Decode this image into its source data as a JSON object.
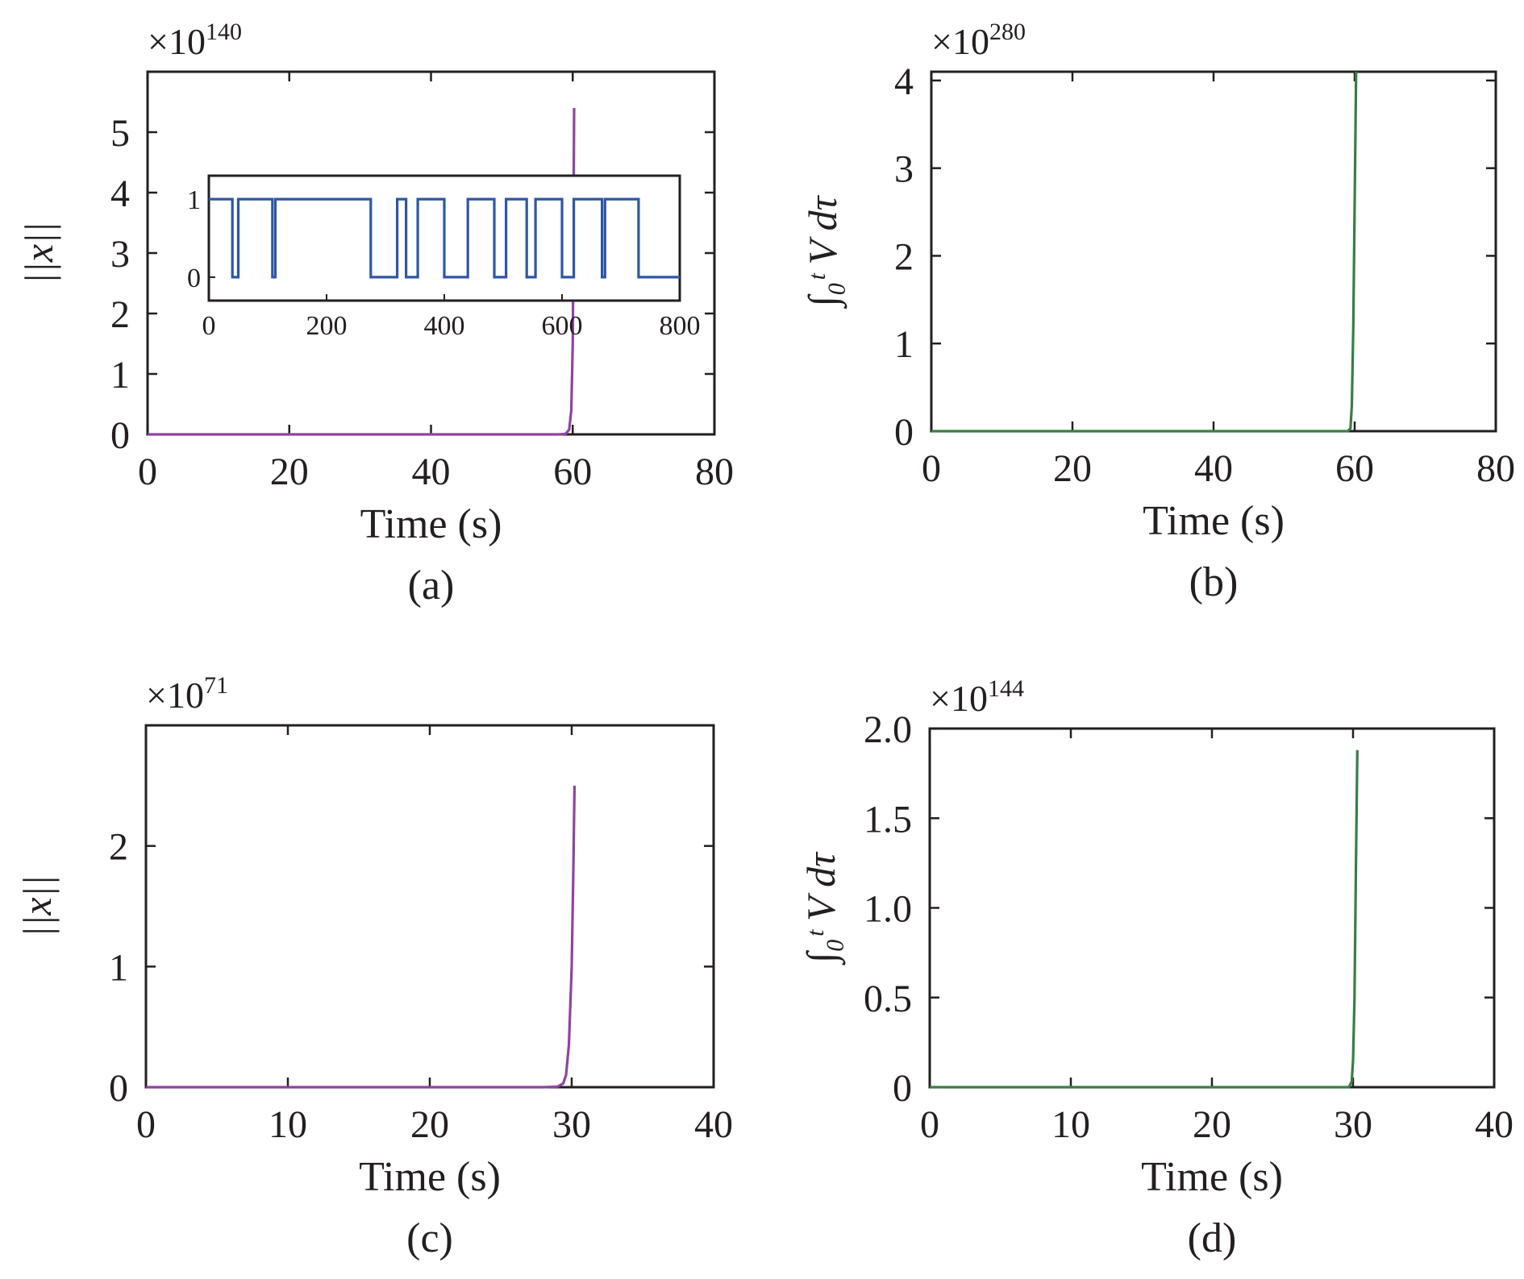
{
  "chart_data": [
    {
      "type": "line",
      "panel": "a",
      "caption": "(a)",
      "xlabel": "Time (s)",
      "ylabel": "||x||",
      "multiplier_base": "×10",
      "multiplier_exp": "140",
      "xlim": [
        0,
        80
      ],
      "ylim": [
        0,
        6
      ],
      "xticks": [
        0,
        20,
        40,
        60,
        80
      ],
      "yticks": [
        0,
        1,
        2,
        3,
        4,
        5
      ],
      "color": "#8e44a0",
      "series": [
        {
          "x": [
            0,
            10,
            20,
            30,
            40,
            50,
            55,
            58,
            59,
            59.5,
            59.8,
            60,
            60.1,
            60.2
          ],
          "values": [
            0,
            0,
            0,
            0,
            0,
            0,
            0,
            0,
            0.01,
            0.08,
            0.4,
            1.5,
            3.2,
            5.4
          ]
        }
      ],
      "inset": {
        "type": "line",
        "xlim": [
          0,
          800
        ],
        "ylim": [
          -0.3,
          1.3
        ],
        "xticks": [
          0,
          200,
          400,
          600,
          800
        ],
        "yticks": [
          0,
          1
        ],
        "color": "#2e56a6",
        "x": [
          0,
          40,
          40,
          50,
          50,
          108,
          108,
          113,
          113,
          275,
          275,
          320,
          320,
          335,
          335,
          355,
          355,
          400,
          400,
          440,
          440,
          485,
          485,
          505,
          505,
          540,
          540,
          555,
          555,
          600,
          600,
          620,
          620,
          668,
          668,
          673,
          673,
          730,
          730,
          800
        ],
        "values": [
          1,
          1,
          0,
          0,
          1,
          1,
          0,
          0,
          1,
          1,
          0,
          0,
          1,
          1,
          0,
          0,
          1,
          1,
          0,
          0,
          1,
          1,
          0,
          0,
          1,
          1,
          0,
          0,
          1,
          1,
          0,
          0,
          1,
          1,
          0,
          0,
          1,
          1,
          0,
          0
        ]
      }
    },
    {
      "type": "line",
      "panel": "b",
      "caption": "(b)",
      "xlabel": "Time (s)",
      "ylabel": "∫₀ᵗ V dτ",
      "multiplier_base": "×10",
      "multiplier_exp": "280",
      "xlim": [
        0,
        80
      ],
      "ylim": [
        0,
        4.1
      ],
      "xticks": [
        0,
        20,
        40,
        60,
        80
      ],
      "yticks": [
        0,
        1,
        2,
        3,
        4
      ],
      "color": "#3a7d44",
      "series": [
        {
          "x": [
            0,
            10,
            20,
            30,
            40,
            50,
            55,
            59,
            59.4,
            59.6,
            59.8,
            60,
            60.2
          ],
          "values": [
            0,
            0,
            0,
            0,
            0,
            0,
            0,
            0,
            0.03,
            0.3,
            1.2,
            2.6,
            4.1
          ]
        }
      ]
    },
    {
      "type": "line",
      "panel": "c",
      "caption": "(c)",
      "xlabel": "Time (s)",
      "ylabel": "||x||",
      "multiplier_base": "×10",
      "multiplier_exp": "71",
      "xlim": [
        0,
        40
      ],
      "ylim": [
        0,
        3
      ],
      "xticks": [
        0,
        10,
        20,
        30,
        40
      ],
      "yticks": [
        0,
        1,
        2
      ],
      "color": "#8e44a0",
      "series": [
        {
          "x": [
            0,
            5,
            10,
            15,
            20,
            25,
            28,
            29,
            29.4,
            29.6,
            29.8,
            30,
            30.1,
            30.2
          ],
          "values": [
            0,
            0,
            0,
            0,
            0,
            0,
            0,
            0.005,
            0.03,
            0.1,
            0.35,
            1.0,
            1.7,
            2.5
          ]
        }
      ]
    },
    {
      "type": "line",
      "panel": "d",
      "caption": "(d)",
      "xlabel": "Time (s)",
      "ylabel": "∫₀ᵗ V dτ",
      "multiplier_base": "×10",
      "multiplier_exp": "144",
      "xlim": [
        0,
        40
      ],
      "ylim": [
        0,
        2.0
      ],
      "xticks": [
        0,
        10,
        20,
        30,
        40
      ],
      "yticks": [
        0,
        0.5,
        1.0,
        1.5,
        2.0
      ],
      "ytick_labels": [
        "0",
        "0.5",
        "1.0",
        "1.5",
        "2.0"
      ],
      "color": "#3a7d44",
      "series": [
        {
          "x": [
            0,
            5,
            10,
            15,
            20,
            25,
            29,
            29.7,
            29.9,
            30,
            30.1,
            30.2,
            30.3
          ],
          "values": [
            0,
            0,
            0,
            0,
            0,
            0,
            0,
            0,
            0.03,
            0.15,
            0.5,
            1.2,
            1.88
          ]
        }
      ]
    }
  ]
}
